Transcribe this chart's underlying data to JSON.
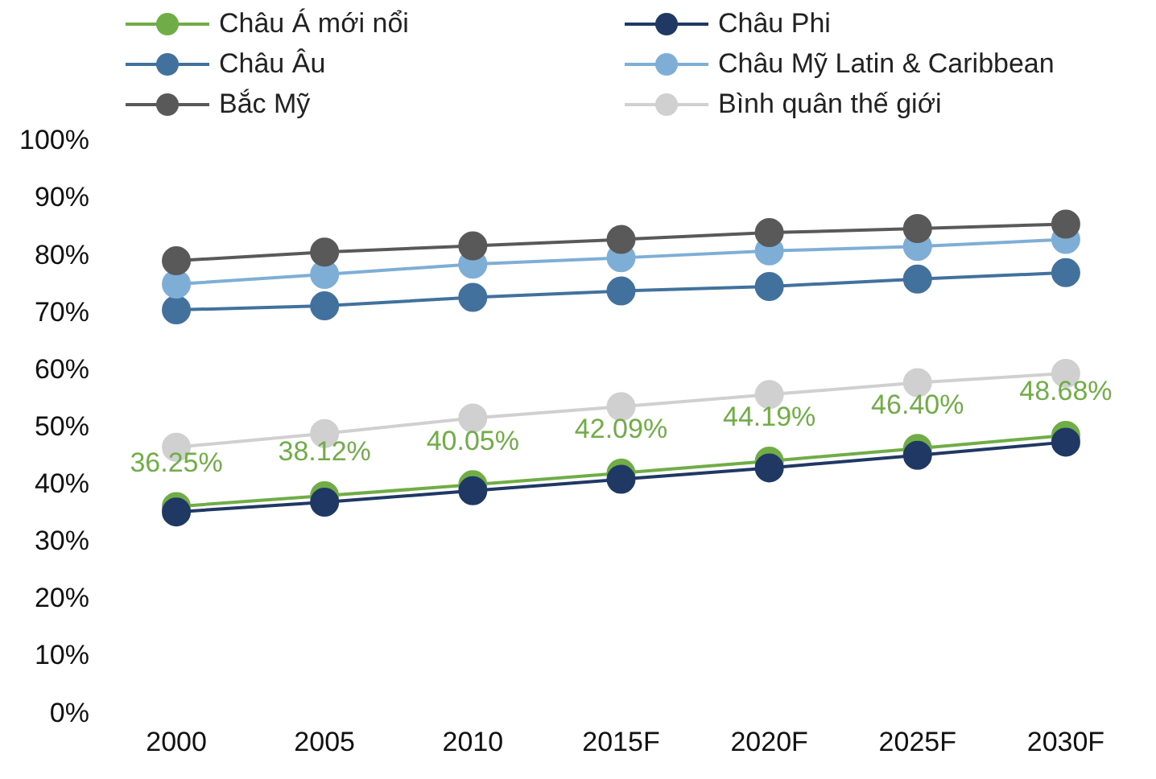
{
  "chart_data": {
    "type": "line",
    "categories": [
      "2000",
      "2005",
      "2010",
      "2015F",
      "2020F",
      "2025F",
      "2030F"
    ],
    "series": [
      {
        "name": "Châu Á mới nổi",
        "color": "#70ad47",
        "values": [
          36.25,
          38.12,
          40.05,
          42.09,
          44.19,
          46.4,
          48.68
        ],
        "value_labels": [
          "36.25%",
          "38.12%",
          "40.05%",
          "42.09%",
          "44.19%",
          "46.40%",
          "48.68%"
        ]
      },
      {
        "name": "Châu Phi",
        "color": "#1f3864",
        "values": [
          35.3,
          37.0,
          39.0,
          41.0,
          43.0,
          45.2,
          47.5
        ]
      },
      {
        "name": "Châu Âu",
        "color": "#41719c",
        "values": [
          70.6,
          71.3,
          72.8,
          73.9,
          74.7,
          76.0,
          77.1
        ]
      },
      {
        "name": "Châu Mỹ Latin & Caribbean",
        "color": "#7eaed6",
        "values": [
          75.1,
          76.8,
          78.6,
          79.7,
          80.9,
          81.7,
          82.9
        ]
      },
      {
        "name": "Bắc Mỹ",
        "color": "#595959",
        "values": [
          79.2,
          80.7,
          81.8,
          82.9,
          84.1,
          84.8,
          85.6
        ]
      },
      {
        "name": "Bình quân thế giới",
        "color": "#d0d0d0",
        "values": [
          46.6,
          49.0,
          51.7,
          53.7,
          55.8,
          57.9,
          59.5
        ]
      }
    ],
    "ylim": [
      0,
      100
    ],
    "yticks": [
      {
        "value": 0,
        "label": "0%"
      },
      {
        "value": 10,
        "label": "10%"
      },
      {
        "value": 20,
        "label": "20%"
      },
      {
        "value": 30,
        "label": "30%"
      },
      {
        "value": 40,
        "label": "40%"
      },
      {
        "value": 50,
        "label": "50%"
      },
      {
        "value": 60,
        "label": "60%"
      },
      {
        "value": 70,
        "label": "70%"
      },
      {
        "value": 80,
        "label": "80%"
      },
      {
        "value": 90,
        "label": "90%"
      },
      {
        "value": 100,
        "label": "100%"
      }
    ],
    "grid": false,
    "legend": "top",
    "marker": "circle",
    "line_style": "solid"
  }
}
